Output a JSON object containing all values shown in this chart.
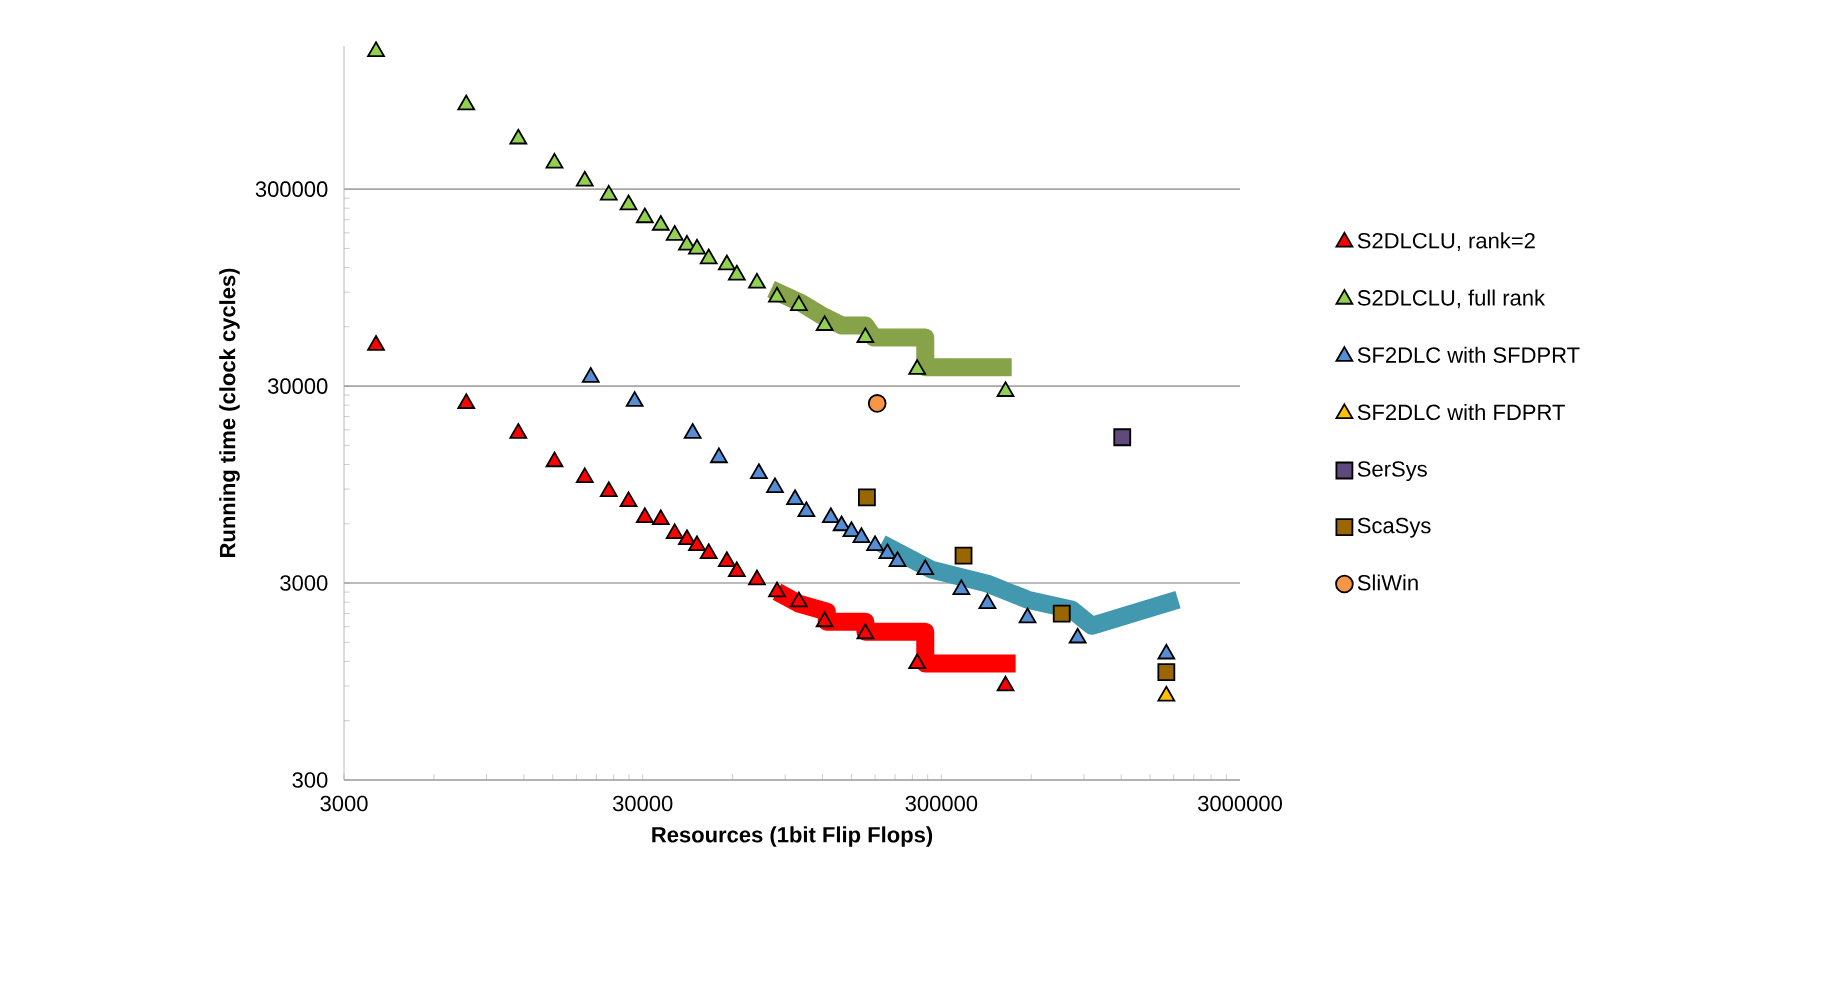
{
  "chart_data": {
    "type": "scatter",
    "xlabel": "Resources (1bit Flip Flops)",
    "ylabel": "Running time (clock cycles)",
    "log": "xy",
    "grid": "y",
    "legend": "right",
    "xlim": [
      3000,
      3000000
    ],
    "xticks": [
      3000,
      30000,
      300000,
      3000000
    ],
    "ylim": [
      300,
      1600000
    ],
    "yticks": [
      300,
      3000,
      30000,
      300000
    ],
    "series": [
      {
        "name": "S2DLCLU, rank=2",
        "color": "#ff0000",
        "marker": "triangle",
        "x": [
          3840,
          7700,
          11500,
          15200,
          19200,
          23100,
          26900,
          30500,
          34500,
          38400,
          42200,
          45600,
          49900,
          57400,
          62000,
          72400,
          84500,
          100000,
          122000,
          167000,
          249000,
          492000
        ],
        "values": [
          48400,
          24500,
          17300,
          12400,
          10300,
          8750,
          7780,
          6460,
          6300,
          5350,
          4990,
          4650,
          4240,
          3860,
          3430,
          3120,
          2710,
          2410,
          1910,
          1660,
          1170,
          902
        ]
      },
      {
        "name": "S2DLCLU, full rank",
        "color": "#92d050",
        "marker": "triangle",
        "x": [
          3840,
          7700,
          11500,
          15200,
          19200,
          23100,
          26900,
          30500,
          34500,
          38400,
          42200,
          45600,
          49900,
          57400,
          62000,
          72400,
          84500,
          100000,
          122000,
          167000,
          249000,
          492000
        ],
        "values": [
          1500000,
          804000,
          540000,
          407000,
          330000,
          280000,
          250000,
          215000,
          197000,
          175000,
          156000,
          149000,
          133000,
          124000,
          110000,
          100000,
          85000,
          77000,
          61000,
          53000,
          36500,
          28200
        ]
      },
      {
        "name": "SF2DLC with SFDPRT",
        "color": "#558ed5",
        "marker": "triangle",
        "x": [
          20100,
          28200,
          44100,
          54000,
          73500,
          83200,
          97100,
          106000,
          128000,
          139000,
          150000,
          162000,
          180000,
          198000,
          214000,
          265000,
          350000,
          428000,
          583000,
          858000,
          1700000
        ],
        "values": [
          33300,
          25100,
          17300,
          13000,
          10800,
          9160,
          7970,
          6920,
          6460,
          5870,
          5480,
          5110,
          4650,
          4240,
          3860,
          3510,
          2780,
          2360,
          2000,
          1580,
          1310
        ]
      },
      {
        "name": "SF2DLC with FDPRT",
        "color": "#ffc000",
        "marker": "triangle",
        "x": [
          1700000
        ],
        "values": [
          801
        ]
      },
      {
        "name": "SerSys",
        "color": "#604a7b",
        "marker": "square",
        "x": [
          1210000
        ],
        "values": [
          16500
        ]
      },
      {
        "name": "ScaSys",
        "color": "#996600",
        "marker": "square",
        "x": [
          169000,
          356000,
          759000,
          1700000
        ],
        "values": [
          8160,
          4130,
          2100,
          1060
        ]
      },
      {
        "name": "SliWin",
        "color": "#f79646",
        "marker": "circle",
        "x": [
          183000
        ],
        "values": [
          24500
        ]
      },
      {
        "type": "line",
        "color": "#ff0000",
        "marker": "none",
        "x": [
          84500,
          100000,
          124000,
          124000,
          167000,
          167000,
          265000,
          265000,
          532000
        ],
        "values": [
          2710,
          2360,
          2150,
          1910,
          1910,
          1700,
          1700,
          1170,
          1170
        ]
      },
      {
        "type": "line",
        "color": "#86a34a",
        "marker": "none",
        "x": [
          80700,
          102000,
          119000,
          139000,
          167000,
          178000,
          265000,
          265000,
          516000
        ],
        "values": [
          93300,
          79200,
          68700,
          61000,
          61000,
          53000,
          53000,
          37400,
          37400
        ]
      },
      {
        "type": "line",
        "color": "#4198af",
        "marker": "none",
        "x": [
          189000,
          278000,
          428000,
          583000,
          819000,
          956000,
          1860000
        ],
        "values": [
          4760,
          3510,
          2980,
          2470,
          2200,
          1820,
          2470
        ]
      }
    ]
  }
}
